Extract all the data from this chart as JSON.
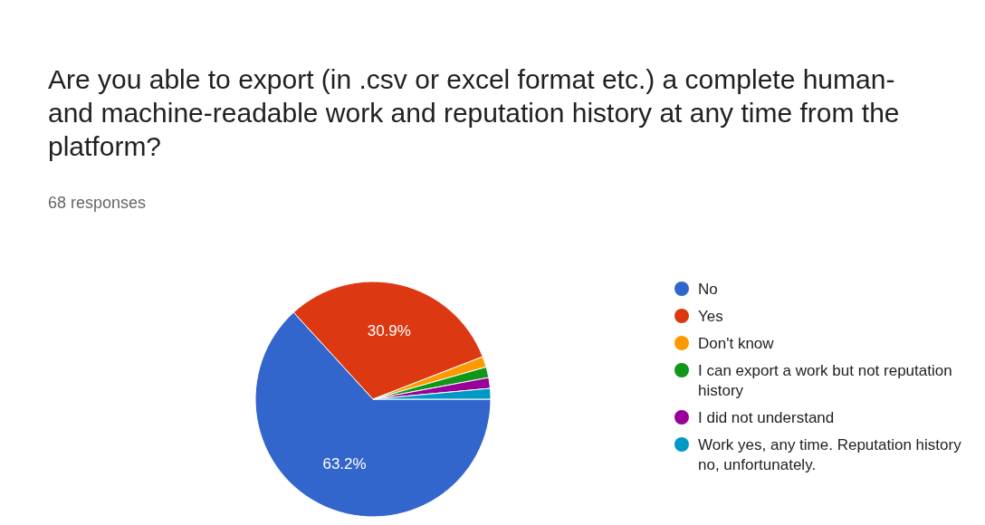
{
  "chart_data": {
    "type": "pie",
    "title": "Are you able to export (in .csv or excel format etc.) a complete human-and machine-readable work and reputation history at any time from the platform?",
    "subtitle": "68 responses",
    "categories": [
      "No",
      "Yes",
      "Don't know",
      "I can export a work but not reputation history",
      "I did not understand",
      "Work yes, any time. Reputation history no, unfortunately."
    ],
    "values": [
      63.2,
      30.9,
      1.47,
      1.47,
      1.47,
      1.47
    ],
    "colors": [
      "#3366cc",
      "#dc3912",
      "#ff9900",
      "#109618",
      "#990099",
      "#0099c6"
    ],
    "value_labels": [
      "63.2%",
      "30.9%",
      null,
      null,
      null,
      null
    ],
    "legend": "right"
  }
}
